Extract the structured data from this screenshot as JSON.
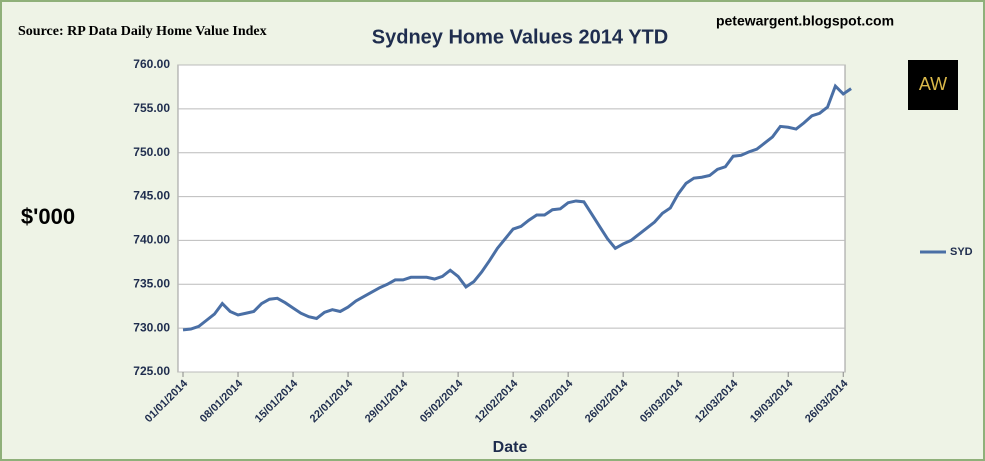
{
  "chart_data": {
    "type": "line",
    "title": "Sydney Home Values 2014 YTD",
    "source": "Source: RP Data Daily Home Value Index",
    "credit": "petewargent.blogspot.com",
    "logo": "AW",
    "ylabel": "$'000",
    "xlabel": "Date",
    "x": [
      "01/01/2014",
      "02/01/2014",
      "03/01/2014",
      "04/01/2014",
      "05/01/2014",
      "06/01/2014",
      "07/01/2014",
      "08/01/2014",
      "09/01/2014",
      "10/01/2014",
      "11/01/2014",
      "12/01/2014",
      "13/01/2014",
      "14/01/2014",
      "15/01/2014",
      "16/01/2014",
      "17/01/2014",
      "18/01/2014",
      "19/01/2014",
      "20/01/2014",
      "21/01/2014",
      "22/01/2014",
      "23/01/2014",
      "24/01/2014",
      "25/01/2014",
      "26/01/2014",
      "27/01/2014",
      "28/01/2014",
      "29/01/2014",
      "30/01/2014",
      "31/01/2014",
      "01/02/2014",
      "02/02/2014",
      "03/02/2014",
      "04/02/2014",
      "05/02/2014",
      "06/02/2014",
      "07/02/2014",
      "08/02/2014",
      "09/02/2014",
      "10/02/2014",
      "11/02/2014",
      "12/02/2014",
      "13/02/2014",
      "14/02/2014",
      "15/02/2014",
      "16/02/2014",
      "17/02/2014",
      "18/02/2014",
      "19/02/2014",
      "20/02/2014",
      "21/02/2014",
      "22/02/2014",
      "23/02/2014",
      "24/02/2014",
      "25/02/2014",
      "26/02/2014",
      "27/02/2014",
      "28/02/2014",
      "01/03/2014",
      "02/03/2014",
      "03/03/2014",
      "04/03/2014",
      "05/03/2014",
      "06/03/2014",
      "07/03/2014",
      "08/03/2014",
      "09/03/2014",
      "10/03/2014",
      "11/03/2014",
      "12/03/2014",
      "13/03/2014",
      "14/03/2014",
      "15/03/2014",
      "16/03/2014",
      "17/03/2014",
      "18/03/2014",
      "19/03/2014",
      "20/03/2014",
      "21/03/2014",
      "22/03/2014",
      "23/03/2014",
      "24/03/2014",
      "25/03/2014",
      "26/03/2014",
      "27/03/2014"
    ],
    "series": [
      {
        "name": "SYD",
        "color": "#4a6fa5",
        "values": [
          729.8,
          729.9,
          730.2,
          730.9,
          731.6,
          732.8,
          731.9,
          731.5,
          731.7,
          731.9,
          732.8,
          733.3,
          733.4,
          732.9,
          732.3,
          731.7,
          731.3,
          731.1,
          731.8,
          732.1,
          731.9,
          732.4,
          733.1,
          733.6,
          734.1,
          734.6,
          735.0,
          735.5,
          735.5,
          735.8,
          735.8,
          735.8,
          735.6,
          735.9,
          736.6,
          735.9,
          734.7,
          735.3,
          736.4,
          737.7,
          739.1,
          740.2,
          741.3,
          741.6,
          742.3,
          742.9,
          742.9,
          743.5,
          743.6,
          744.3,
          744.5,
          744.4,
          743.0,
          741.6,
          740.2,
          739.1,
          739.6,
          740.0,
          740.7,
          741.4,
          742.1,
          743.1,
          743.7,
          745.3,
          746.5,
          747.1,
          747.2,
          747.4,
          748.1,
          748.4,
          749.6,
          749.7,
          750.1,
          750.4,
          751.1,
          751.8,
          753.0,
          752.9,
          752.7,
          753.4,
          754.2,
          754.5,
          755.2,
          757.6,
          756.7,
          757.3
        ]
      }
    ],
    "xticks": [
      "01/01/2014",
      "08/01/2014",
      "15/01/2014",
      "22/01/2014",
      "29/01/2014",
      "05/02/2014",
      "12/02/2014",
      "19/02/2014",
      "26/02/2014",
      "05/03/2014",
      "12/03/2014",
      "19/03/2014",
      "26/03/2014"
    ],
    "ylim": [
      725,
      760
    ],
    "yticks": [
      {
        "value": 725,
        "label": "725.00"
      },
      {
        "value": 730,
        "label": "730.00"
      },
      {
        "value": 735,
        "label": "735.00"
      },
      {
        "value": 740,
        "label": "740.00"
      },
      {
        "value": 745,
        "label": "745.00"
      },
      {
        "value": 750,
        "label": "750.00"
      },
      {
        "value": 755,
        "label": "755.00"
      },
      {
        "value": 760,
        "label": "760.00"
      }
    ],
    "grid": true,
    "legend": "right"
  }
}
